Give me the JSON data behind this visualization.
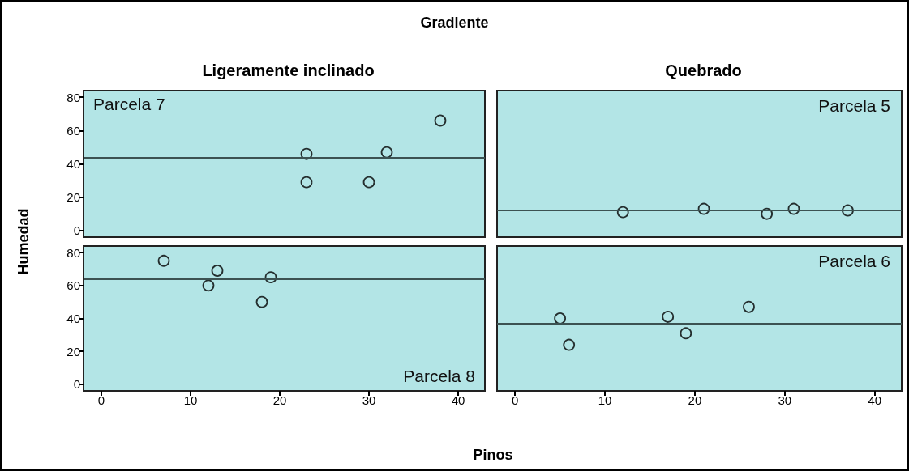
{
  "chart_data": [
    {
      "type": "scatter",
      "title": "Gradiente",
      "subtitle": "Ligeramente inclinado",
      "ylabel": "Humedad",
      "annotations": [
        "Parcela 7"
      ],
      "x": [
        23,
        23,
        30,
        32,
        38
      ],
      "values": [
        46,
        29,
        29,
        47,
        66
      ],
      "color": "#000000",
      "marker": "circle",
      "xlim": [
        -2,
        43
      ],
      "ylim": [
        -4,
        84
      ],
      "xticks": [
        0,
        10,
        20,
        30,
        40
      ],
      "yticks": [
        0,
        20,
        40,
        60,
        80
      ],
      "tick_labels": "y",
      "grid": false,
      "ref_lines": [
        {
          "axis": "y",
          "value": 44,
          "color": "#3c5252"
        }
      ]
    },
    {
      "type": "scatter",
      "subtitle": "Quebrado",
      "annotations": [
        "Parcela 5"
      ],
      "x": [
        12,
        21,
        28,
        31,
        37
      ],
      "values": [
        11,
        13,
        10,
        13,
        12
      ],
      "color": "#000000",
      "marker": "circle",
      "xlim": [
        -2,
        43
      ],
      "ylim": [
        -4,
        84
      ],
      "xticks": [
        0,
        10,
        20,
        30,
        40
      ],
      "yticks": [
        0,
        20,
        40,
        60,
        80
      ],
      "tick_labels": false,
      "grid": false,
      "ref_lines": [
        {
          "axis": "y",
          "value": 12,
          "color": "#3c5252"
        }
      ]
    },
    {
      "type": "scatter",
      "xlabel": "Pinos",
      "annotations": [
        "Parcela 8"
      ],
      "x": [
        7,
        12,
        13,
        18,
        19
      ],
      "values": [
        75,
        60,
        69,
        50,
        65
      ],
      "color": "#000000",
      "marker": "circle",
      "xlim": [
        -2,
        43
      ],
      "ylim": [
        -4,
        84
      ],
      "xticks": [
        0,
        10,
        20,
        30,
        40
      ],
      "yticks": [
        0,
        20,
        40,
        60,
        80
      ],
      "grid": false,
      "ref_lines": [
        {
          "axis": "y",
          "value": 64,
          "color": "#3c5252"
        }
      ]
    },
    {
      "type": "scatter",
      "annotations": [
        "Parcela 6"
      ],
      "x": [
        5,
        6,
        17,
        19,
        26
      ],
      "values": [
        40,
        24,
        41,
        31,
        47
      ],
      "color": "#000000",
      "marker": "circle",
      "xlim": [
        -2,
        43
      ],
      "ylim": [
        -4,
        84
      ],
      "xticks": [
        0,
        10,
        20,
        30,
        40
      ],
      "yticks": [
        0,
        20,
        40,
        60,
        80
      ],
      "tick_labels": "x",
      "grid": false,
      "ref_lines": [
        {
          "axis": "y",
          "value": 37,
          "color": "#3c5252"
        }
      ]
    }
  ]
}
